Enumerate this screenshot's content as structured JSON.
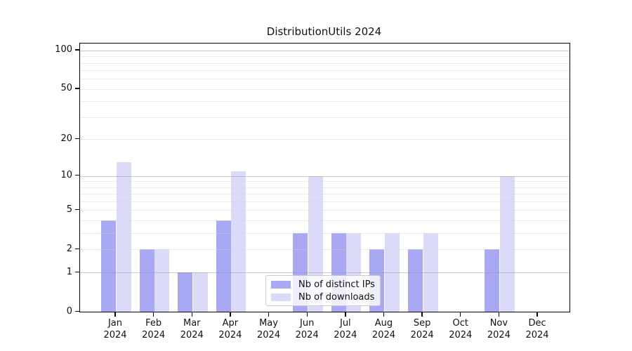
{
  "chart_data": {
    "type": "bar",
    "title": "DistributionUtils 2024",
    "categories": [
      "Jan",
      "Feb",
      "Mar",
      "Apr",
      "May",
      "Jun",
      "Jul",
      "Aug",
      "Sep",
      "Oct",
      "Nov",
      "Dec"
    ],
    "category_year_label": "2024",
    "series": [
      {
        "name": "Nb of distinct IPs",
        "color": "#a8a8f5",
        "values": [
          4,
          2,
          1,
          4,
          0,
          3,
          3,
          2,
          2,
          0,
          2,
          0
        ]
      },
      {
        "name": "Nb of downloads",
        "color": "#dbdbf9",
        "values": [
          13,
          2,
          1,
          11,
          0,
          10,
          3,
          3,
          3,
          0,
          10,
          0
        ]
      }
    ],
    "yscale": "log1p",
    "ylim": [
      0,
      113
    ],
    "yticks": [
      0,
      1,
      2,
      5,
      10,
      20,
      50,
      100
    ],
    "ygrid_major": [
      1,
      10,
      100
    ],
    "ygrid_minor": [
      2,
      3,
      4,
      5,
      6,
      7,
      8,
      9,
      20,
      30,
      40,
      50,
      60,
      70,
      80,
      90
    ],
    "grid": true,
    "legend_position": "lower center-left"
  },
  "colors": {
    "spine": "#000000",
    "grid_major": "#c8c8c8",
    "grid_minor": "#ededed",
    "text": "#111111",
    "background": "#ffffff"
  }
}
